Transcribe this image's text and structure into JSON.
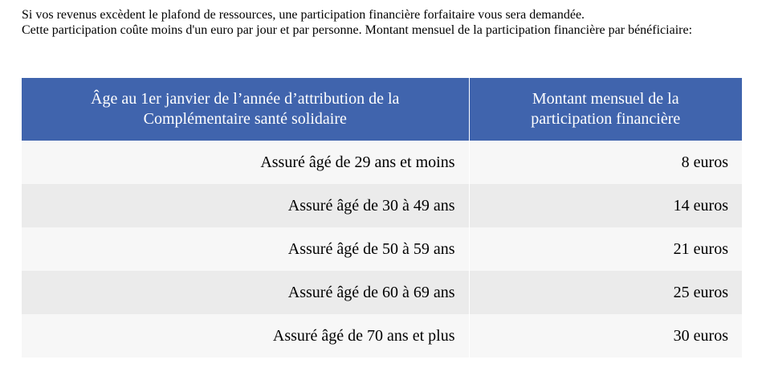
{
  "intro": {
    "line1": "Si vos revenus excèdent le plafond de ressources, une participation financière forfaitaire vous sera demandée.",
    "line2": "Cette participation coûte moins d'un euro par jour et par personne. Montant mensuel de la participation financière par bénéficiaire:"
  },
  "table": {
    "headers": {
      "age": "Âge au 1er janvier de l’année d’attribution de la Complémentaire santé solidaire",
      "amount": "Montant mensuel de la participation financière"
    },
    "rows": [
      {
        "age": "Assuré âgé de 29 ans et moins",
        "amount": "8 euros"
      },
      {
        "age": "Assuré âgé de 30 à 49 ans",
        "amount": "14 euros"
      },
      {
        "age": "Assuré âgé de 50 à 59 ans",
        "amount": "21 euros"
      },
      {
        "age": "Assuré âgé de 60 à 69 ans",
        "amount": "25 euros"
      },
      {
        "age": "Assuré âgé de 70 ans et plus",
        "amount": "30 euros"
      }
    ]
  }
}
